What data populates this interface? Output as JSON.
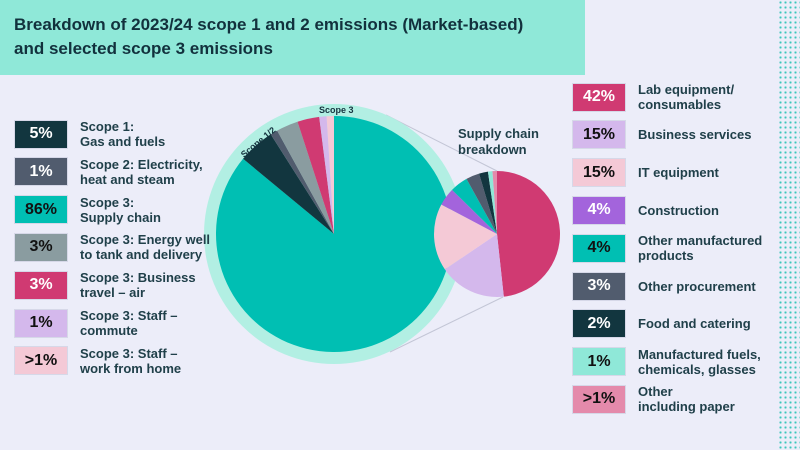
{
  "title": {
    "line1": "Breakdown of 2023/24 scope 1 and 2 emissions (Market-based)",
    "line2": "and selected scope 3 emissions"
  },
  "chart_data": [
    {
      "type": "pie",
      "name_labels": [
        "Scope 1/2",
        "Scope 3"
      ],
      "categories": [
        "Scope 3: Supply chain",
        "Scope 1: Gas and fuels",
        "Scope 2: Electricity, heat and steam",
        "Scope 3: Energy well to tank and delivery",
        "Scope 3: Business travel – air",
        "Scope 3: Staff – commute",
        "Scope 3: Staff – work from home"
      ],
      "values": [
        86,
        5,
        1,
        3,
        3,
        1,
        1
      ],
      "colors": [
        "#00bfb3",
        "#12363f",
        "#515c6e",
        "#8a9ca0",
        "#d03a72",
        "#d4b8ec",
        "#f4c9d6"
      ]
    },
    {
      "type": "pie",
      "title": "Supply chain breakdown",
      "categories": [
        "Lab equipment/ consumables",
        "Business services",
        "IT equipment",
        "Construction",
        "Other manufactured products",
        "Other procurement",
        "Food and catering",
        "Manufactured fuels, chemicals, glasses",
        "Other including paper"
      ],
      "values": [
        42,
        15,
        15,
        4,
        4,
        3,
        2,
        1,
        1
      ],
      "colors": [
        "#d03a72",
        "#d4b8ec",
        "#f4c9d6",
        "#a364dc",
        "#00bfb3",
        "#515c6e",
        "#12363f",
        "#8fe8d8",
        "#e48aab"
      ]
    }
  ],
  "left_legend": [
    {
      "pct": "5%",
      "label": "Scope 1:\nGas and fuels",
      "bg": "#12363f",
      "fg": "#ffffff"
    },
    {
      "pct": "1%",
      "label": "Scope 2: Electricity,\nheat and steam",
      "bg": "#515c6e",
      "fg": "#ffffff"
    },
    {
      "pct": "86%",
      "label": "Scope 3:\nSupply chain",
      "bg": "#00bfb3",
      "fg": "#111111"
    },
    {
      "pct": "3%",
      "label": "Scope 3: Energy well\nto tank and delivery",
      "bg": "#8a9ca0",
      "fg": "#111111"
    },
    {
      "pct": "3%",
      "label": "Scope 3: Business\ntravel – air",
      "bg": "#d03a72",
      "fg": "#ffffff"
    },
    {
      "pct": "1%",
      "label": "Scope 3: Staff –\ncommute",
      "bg": "#d4b8ec",
      "fg": "#111111"
    },
    {
      "pct": ">1%",
      "label": "Scope 3: Staff –\nwork from home",
      "bg": "#f4c9d6",
      "fg": "#111111"
    }
  ],
  "right_legend": [
    {
      "pct": "42%",
      "label": "Lab equipment/\nconsumables",
      "bg": "#d03a72",
      "fg": "#ffffff"
    },
    {
      "pct": "15%",
      "label": "Business services",
      "bg": "#d4b8ec",
      "fg": "#111111"
    },
    {
      "pct": "15%",
      "label": "IT equipment",
      "bg": "#f4c9d6",
      "fg": "#111111"
    },
    {
      "pct": "4%",
      "label": "Construction",
      "bg": "#a364dc",
      "fg": "#ffffff"
    },
    {
      "pct": "4%",
      "label": "Other manufactured\nproducts",
      "bg": "#00bfb3",
      "fg": "#111111"
    },
    {
      "pct": "3%",
      "label": "Other procurement",
      "bg": "#515c6e",
      "fg": "#ffffff"
    },
    {
      "pct": "2%",
      "label": "Food and catering",
      "bg": "#12363f",
      "fg": "#ffffff"
    },
    {
      "pct": "1%",
      "label": "Manufactured fuels,\nchemicals, glasses",
      "bg": "#8fe8d8",
      "fg": "#111111"
    },
    {
      "pct": ">1%",
      "label": "Other\nincluding paper",
      "bg": "#e48aab",
      "fg": "#111111"
    }
  ]
}
